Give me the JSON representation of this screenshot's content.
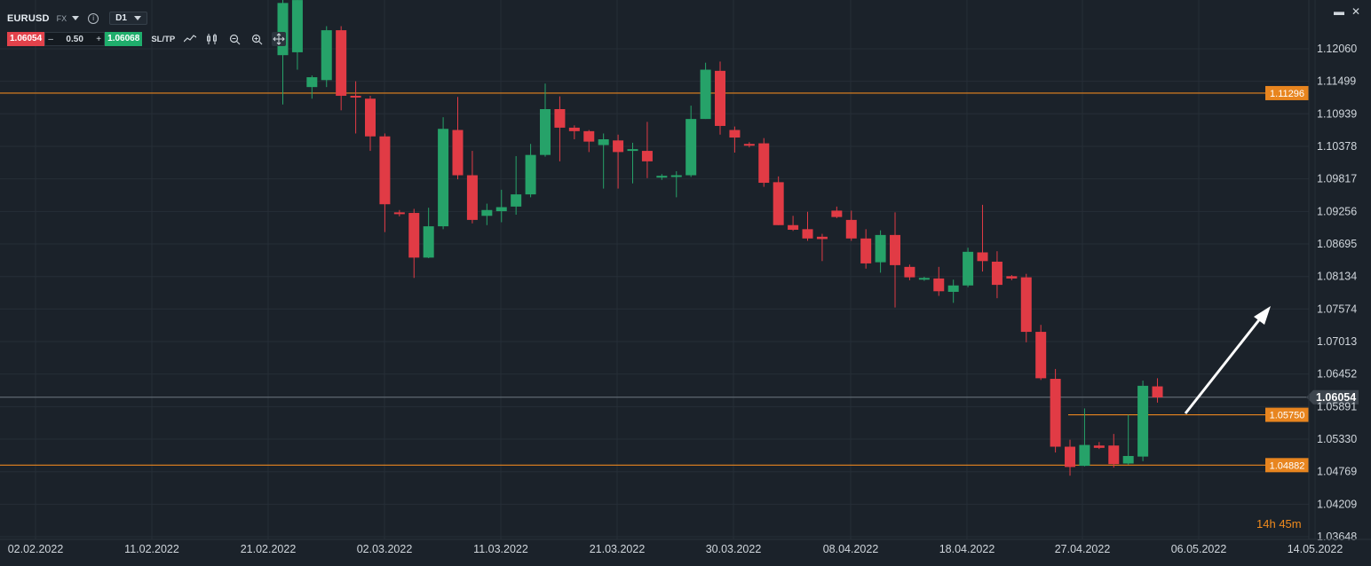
{
  "header": {
    "symbol": "EURUSD",
    "market": "FX",
    "timeframe": "D1",
    "info_glyph": "i",
    "sell_price": "1.06054",
    "lot_size": "0.50",
    "minus_label": "–",
    "plus_label": "+",
    "buy_price": "1.06068",
    "sltp_label": "SL/TP",
    "tools": [
      "line-chart-icon",
      "candles-icon",
      "zoom-out-icon",
      "zoom-in-icon",
      "move-icon"
    ]
  },
  "window_controls": {
    "restore_glyph": "▬",
    "close_glyph": "✕"
  },
  "countdown": {
    "hours": "14",
    "h": "h",
    "minutes": "45",
    "m": "m"
  },
  "colors": {
    "background": "#1b222a",
    "grid": "#262e37",
    "bull": "#26a269",
    "bear": "#e13b45",
    "level": "#e8851f",
    "current_price_line": "#6e7780",
    "axis_text": "#d0d6dc",
    "arrow": "#ffffff"
  },
  "chart_data": {
    "type": "candlestick",
    "instrument": "EURUSD",
    "timeframe": "D1",
    "y_ticks": [
      "1.12060",
      "1.11499",
      "1.10939",
      "1.10378",
      "1.09817",
      "1.09256",
      "1.08695",
      "1.08134",
      "1.07574",
      "1.07013",
      "1.06452",
      "1.05891",
      "1.05330",
      "1.04769",
      "1.04209",
      "1.03648"
    ],
    "x_ticks": [
      "02.02.2022",
      "11.02.2022",
      "21.02.2022",
      "02.03.2022",
      "11.03.2022",
      "21.03.2022",
      "30.03.2022",
      "08.04.2022",
      "18.04.2022",
      "27.04.2022",
      "06.05.2022",
      "14.05.2022"
    ],
    "ylim": [
      1.03648,
      1.12621
    ],
    "current_price": {
      "value": 1.06054,
      "label": "1.06054"
    },
    "levels": [
      {
        "value": 1.11296,
        "label": "1.11296",
        "extends": "full"
      },
      {
        "value": 1.0575,
        "label": "1.05750",
        "extends": "from 28.04.2022"
      },
      {
        "value": 1.04882,
        "label": "1.04882",
        "extends": "full"
      }
    ],
    "annotation": {
      "type": "arrow",
      "direction": "up-right",
      "from": {
        "date": "06.05.2022",
        "price": 1.0589
      },
      "to": {
        "date": "14.05.2022",
        "price": 1.0764
      }
    },
    "candles": [
      {
        "o": 1.1195,
        "h": 1.134,
        "l": 1.111,
        "c": 1.1285
      },
      {
        "o": 1.12,
        "h": 1.13,
        "l": 1.117,
        "c": 1.129
      },
      {
        "o": 1.114,
        "h": 1.116,
        "l": 1.112,
        "c": 1.1157
      },
      {
        "o": 1.1152,
        "h": 1.1245,
        "l": 1.114,
        "c": 1.1238
      },
      {
        "o": 1.1238,
        "h": 1.1245,
        "l": 1.11,
        "c": 1.1125
      },
      {
        "o": 1.1125,
        "h": 1.115,
        "l": 1.106,
        "c": 1.1122
      },
      {
        "o": 1.112,
        "h": 1.1125,
        "l": 1.103,
        "c": 1.1055
      },
      {
        "o": 1.1055,
        "h": 1.106,
        "l": 1.089,
        "c": 1.0938
      },
      {
        "o": 1.0924,
        "h": 1.0928,
        "l": 1.0917,
        "c": 1.0922
      },
      {
        "o": 1.0923,
        "h": 1.093,
        "l": 1.0811,
        "c": 1.0846
      },
      {
        "o": 1.0846,
        "h": 1.0932,
        "l": 1.0845,
        "c": 1.09
      },
      {
        "o": 1.09,
        "h": 1.1088,
        "l": 1.0895,
        "c": 1.1068
      },
      {
        "o": 1.1066,
        "h": 1.1123,
        "l": 1.0981,
        "c": 1.0988
      },
      {
        "o": 1.0988,
        "h": 1.103,
        "l": 1.0905,
        "c": 1.0911
      },
      {
        "o": 1.0918,
        "h": 1.0939,
        "l": 1.0902,
        "c": 1.0928
      },
      {
        "o": 1.0926,
        "h": 1.0963,
        "l": 1.0907,
        "c": 1.0933
      },
      {
        "o": 1.0934,
        "h": 1.1021,
        "l": 1.092,
        "c": 1.0955
      },
      {
        "o": 1.0955,
        "h": 1.1042,
        "l": 1.095,
        "c": 1.1023
      },
      {
        "o": 1.1023,
        "h": 1.1146,
        "l": 1.102,
        "c": 1.1102
      },
      {
        "o": 1.1102,
        "h": 1.1124,
        "l": 1.1012,
        "c": 1.107
      },
      {
        "o": 1.107,
        "h": 1.1074,
        "l": 1.105,
        "c": 1.1064
      },
      {
        "o": 1.1064,
        "h": 1.1066,
        "l": 1.1028,
        "c": 1.1046
      },
      {
        "o": 1.104,
        "h": 1.106,
        "l": 1.0965,
        "c": 1.105
      },
      {
        "o": 1.1048,
        "h": 1.1058,
        "l": 1.0965,
        "c": 1.1028
      },
      {
        "o": 1.103,
        "h": 1.1044,
        "l": 1.0974,
        "c": 1.1033
      },
      {
        "o": 1.103,
        "h": 1.108,
        "l": 1.0983,
        "c": 1.1012
      },
      {
        "o": 1.0985,
        "h": 1.099,
        "l": 1.098,
        "c": 1.0987
      },
      {
        "o": 1.0986,
        "h": 1.0995,
        "l": 1.095,
        "c": 1.0988
      },
      {
        "o": 1.0988,
        "h": 1.1108,
        "l": 1.0985,
        "c": 1.1085
      },
      {
        "o": 1.1085,
        "h": 1.1182,
        "l": 1.1085,
        "c": 1.117
      },
      {
        "o": 1.1168,
        "h": 1.1184,
        "l": 1.1058,
        "c": 1.1073
      },
      {
        "o": 1.1066,
        "h": 1.1072,
        "l": 1.1027,
        "c": 1.1053
      },
      {
        "o": 1.1042,
        "h": 1.1045,
        "l": 1.1036,
        "c": 1.104
      },
      {
        "o": 1.1043,
        "h": 1.1052,
        "l": 1.0968,
        "c": 1.0975
      },
      {
        "o": 1.0976,
        "h": 1.0986,
        "l": 1.0902,
        "c": 1.0902
      },
      {
        "o": 1.0902,
        "h": 1.0918,
        "l": 1.0892,
        "c": 1.0894
      },
      {
        "o": 1.0895,
        "h": 1.0925,
        "l": 1.0875,
        "c": 1.0879
      },
      {
        "o": 1.0882,
        "h": 1.0887,
        "l": 1.084,
        "c": 1.0878
      },
      {
        "o": 1.0927,
        "h": 1.0934,
        "l": 1.0914,
        "c": 1.0916
      },
      {
        "o": 1.0911,
        "h": 1.0927,
        "l": 1.0875,
        "c": 1.0879
      },
      {
        "o": 1.0879,
        "h": 1.0895,
        "l": 1.0827,
        "c": 1.0836
      },
      {
        "o": 1.0838,
        "h": 1.0893,
        "l": 1.082,
        "c": 1.0885
      },
      {
        "o": 1.0885,
        "h": 1.0924,
        "l": 1.076,
        "c": 1.0833
      },
      {
        "o": 1.083,
        "h": 1.0834,
        "l": 1.0807,
        "c": 1.0812
      },
      {
        "o": 1.0808,
        "h": 1.0813,
        "l": 1.0806,
        "c": 1.0811
      },
      {
        "o": 1.081,
        "h": 1.083,
        "l": 1.078,
        "c": 1.0788
      },
      {
        "o": 1.0787,
        "h": 1.0808,
        "l": 1.0768,
        "c": 1.0798
      },
      {
        "o": 1.0798,
        "h": 1.0863,
        "l": 1.0795,
        "c": 1.0856
      },
      {
        "o": 1.0855,
        "h": 1.0937,
        "l": 1.0822,
        "c": 1.084
      },
      {
        "o": 1.0839,
        "h": 1.0857,
        "l": 1.0776,
        "c": 1.0799
      },
      {
        "o": 1.0814,
        "h": 1.0816,
        "l": 1.0807,
        "c": 1.081
      },
      {
        "o": 1.0812,
        "h": 1.0818,
        "l": 1.07,
        "c": 1.0718
      },
      {
        "o": 1.0718,
        "h": 1.073,
        "l": 1.0635,
        "c": 1.0638
      },
      {
        "o": 1.0637,
        "h": 1.0654,
        "l": 1.051,
        "c": 1.052
      },
      {
        "o": 1.052,
        "h": 1.0532,
        "l": 1.047,
        "c": 1.0485
      },
      {
        "o": 1.0487,
        "h": 1.0586,
        "l": 1.0486,
        "c": 1.0523
      },
      {
        "o": 1.0522,
        "h": 1.0528,
        "l": 1.0516,
        "c": 1.0518
      },
      {
        "o": 1.0522,
        "h": 1.0542,
        "l": 1.0484,
        "c": 1.049
      },
      {
        "o": 1.0491,
        "h": 1.0575,
        "l": 1.0489,
        "c": 1.0504
      },
      {
        "o": 1.0503,
        "h": 1.0634,
        "l": 1.0495,
        "c": 1.0625
      },
      {
        "o": 1.0624,
        "h": 1.0638,
        "l": 1.0596,
        "c": 1.0605
      }
    ]
  }
}
